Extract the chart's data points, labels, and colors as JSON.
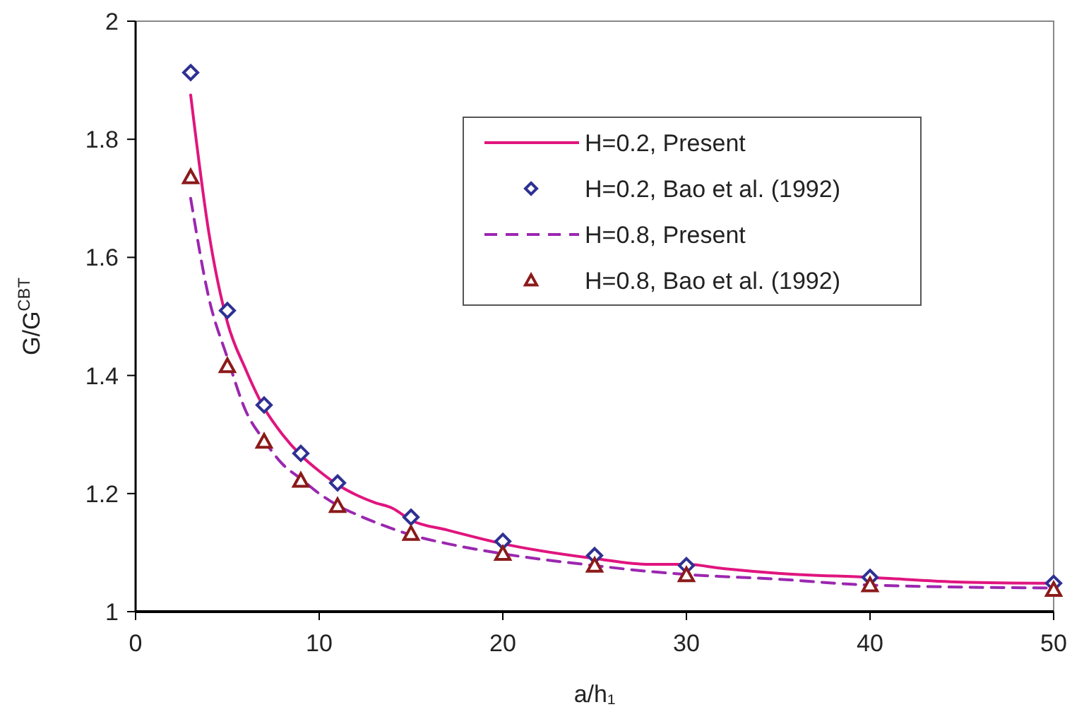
{
  "chart_data": {
    "type": "line",
    "xlabel": "a/h₁",
    "ylabel": "G/G$^{CBT}$",
    "xlim": [
      0,
      50
    ],
    "ylim": [
      1,
      2
    ],
    "xticks": [
      0,
      10,
      20,
      30,
      40,
      50
    ],
    "yticks": [
      1,
      1.2,
      1.4,
      1.6,
      1.8,
      2
    ],
    "grid": false,
    "legend": "top right",
    "series": [
      {
        "name": "H=0.2, Present",
        "type": "line",
        "color": "#e0157e",
        "line_style": "solid",
        "marker": "none",
        "x": [
          3,
          4,
          5,
          6,
          7,
          8,
          9,
          10,
          11,
          12,
          13,
          14,
          15,
          17,
          20,
          25,
          28,
          30,
          32,
          35,
          40,
          45,
          50
        ],
        "values": [
          1.875,
          1.64,
          1.49,
          1.41,
          1.345,
          1.3,
          1.265,
          1.238,
          1.215,
          1.198,
          1.185,
          1.175,
          1.155,
          1.138,
          1.115,
          1.09,
          1.08,
          1.08,
          1.073,
          1.065,
          1.058,
          1.05,
          1.048
        ]
      },
      {
        "name": "H=0.2, Bao et al. (1992)",
        "type": "scatter",
        "color": "#2e3192",
        "marker": "diamond",
        "x": [
          3,
          5,
          7,
          9,
          11,
          15,
          20,
          25,
          30,
          40,
          50
        ],
        "values": [
          1.913,
          1.51,
          1.35,
          1.268,
          1.218,
          1.16,
          1.119,
          1.095,
          1.078,
          1.058,
          1.048
        ]
      },
      {
        "name": "H=0.8, Present",
        "type": "line",
        "color": "#9b27b0",
        "line_style": "dashed",
        "marker": "none",
        "x": [
          3,
          4,
          5,
          6,
          7,
          8,
          9,
          10,
          11,
          12,
          13,
          15,
          17,
          20,
          25,
          28,
          30,
          35,
          40,
          50
        ],
        "values": [
          1.7,
          1.53,
          1.43,
          1.34,
          1.29,
          1.25,
          1.225,
          1.2,
          1.18,
          1.165,
          1.152,
          1.13,
          1.115,
          1.098,
          1.078,
          1.068,
          1.063,
          1.055,
          1.045,
          1.04
        ]
      },
      {
        "name": "H=0.8, Bao et al. (1992)",
        "type": "scatter",
        "color": "#8b1a1a",
        "marker": "triangle",
        "x": [
          3,
          5,
          7,
          9,
          11,
          15,
          20,
          25,
          30,
          40,
          50
        ],
        "values": [
          1.736,
          1.416,
          1.288,
          1.222,
          1.179,
          1.132,
          1.098,
          1.078,
          1.062,
          1.045,
          1.037
        ]
      }
    ]
  }
}
